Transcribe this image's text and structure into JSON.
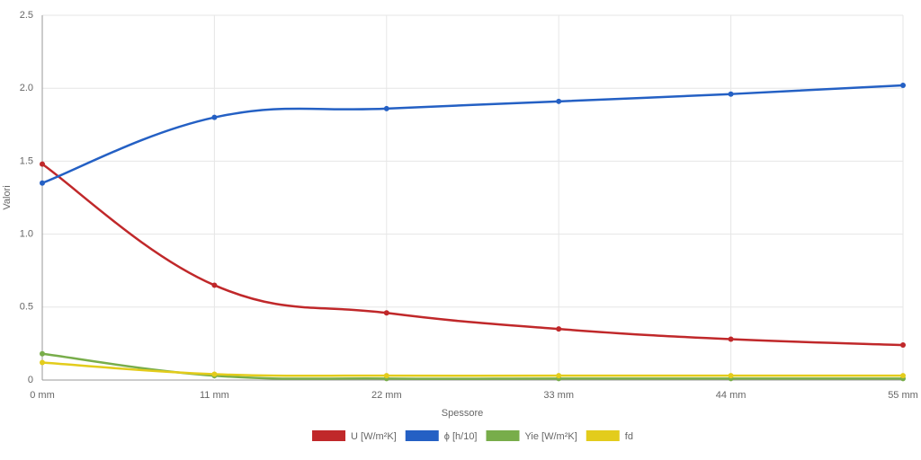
{
  "chart_data": {
    "type": "line",
    "x_label": "Spessore",
    "y_label": "Valori",
    "categories": [
      "0 mm",
      "11 mm",
      "22 mm",
      "33 mm",
      "44 mm",
      "55 mm"
    ],
    "series": [
      {
        "name": "U [W/m²K]",
        "color": "#c0282a",
        "values": [
          1.48,
          0.65,
          0.46,
          0.35,
          0.28,
          0.24
        ]
      },
      {
        "name": "ϕ [h/10]",
        "color": "#2460c4",
        "values": [
          1.35,
          1.8,
          1.86,
          1.91,
          1.96,
          2.02
        ]
      },
      {
        "name": "Yie [W/m²K]",
        "color": "#78ad4a",
        "values": [
          0.18,
          0.03,
          0.01,
          0.01,
          0.01,
          0.01
        ]
      },
      {
        "name": "fd",
        "color": "#e3cc1c",
        "values": [
          0.12,
          0.04,
          0.03,
          0.03,
          0.03,
          0.03
        ]
      }
    ],
    "ylim": [
      0,
      2.5
    ],
    "yticks": [
      0,
      {
        "value": 0.5,
        "label": "0.5"
      },
      {
        "value": 1,
        "label": "1.0"
      },
      {
        "value": 1.5,
        "label": "1.5"
      },
      {
        "value": 2,
        "label": "2.0"
      },
      {
        "value": 2.5,
        "label": "2.5"
      }
    ],
    "grid": true,
    "legend": "bottom"
  }
}
